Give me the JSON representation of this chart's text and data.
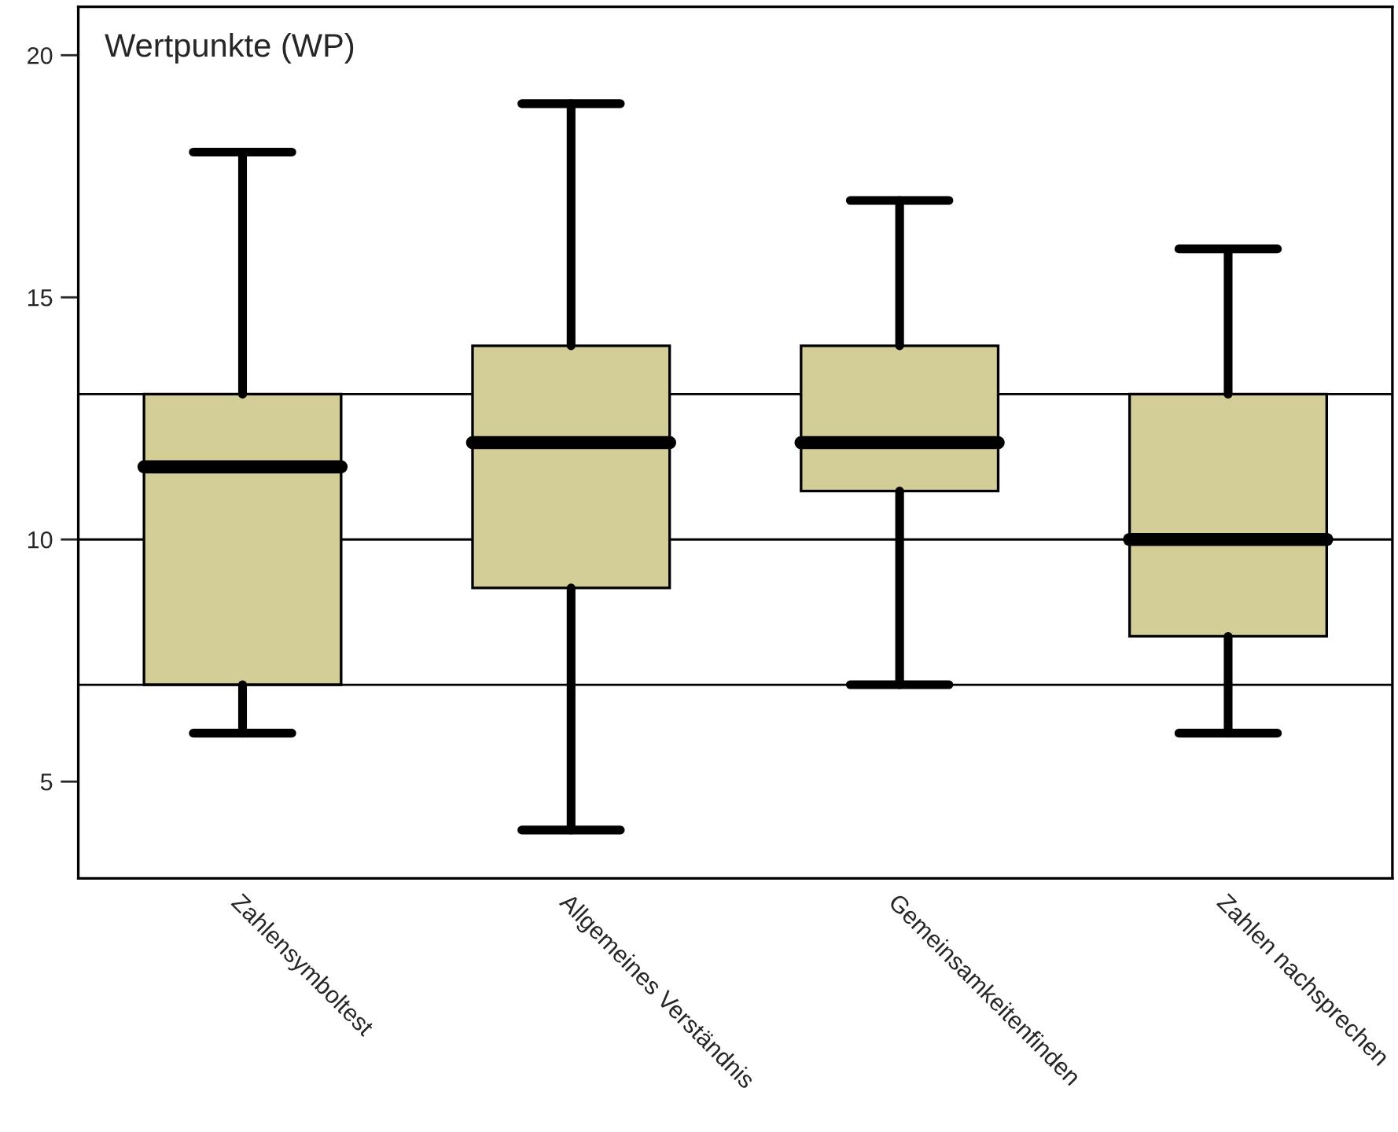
{
  "chart_data": {
    "type": "box",
    "ylabel": "Wertpunkte (WP)",
    "categories": [
      "Zahlensymboltest",
      "Allgemeines Verständnis",
      "Gemeinsamkeitenfinden",
      "Zahlen nachsprechen"
    ],
    "boxes": [
      {
        "low": 6,
        "q1": 7,
        "median": 11.5,
        "q3": 13,
        "high": 18
      },
      {
        "low": 4,
        "q1": 9,
        "median": 12,
        "q3": 14,
        "high": 19
      },
      {
        "low": 7,
        "q1": 11,
        "median": 12,
        "q3": 14,
        "high": 17
      },
      {
        "low": 6,
        "q1": 8,
        "median": 10,
        "q3": 13,
        "high": 16
      }
    ],
    "color": "#d3cd98",
    "ylim": [
      3,
      21
    ],
    "yticks": [
      5,
      10,
      15,
      20
    ],
    "ref_lines": [
      {
        "axis": "y",
        "value": 7,
        "color": "#000000"
      },
      {
        "axis": "y",
        "value": 10,
        "color": "#000000"
      },
      {
        "axis": "y",
        "value": 13,
        "color": "#000000"
      }
    ],
    "grid": false,
    "legend": false
  }
}
